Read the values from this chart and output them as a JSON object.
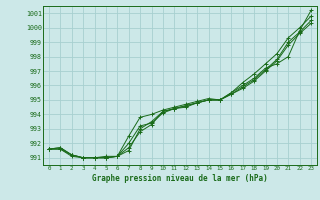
{
  "title": "Graphe pression niveau de la mer (hPa)",
  "bg_color": "#cce8e8",
  "grid_color": "#a8d0d0",
  "line_color": "#1a6b1a",
  "xlim": [
    -0.5,
    23.5
  ],
  "ylim": [
    990.5,
    1001.5
  ],
  "yticks": [
    991,
    992,
    993,
    994,
    995,
    996,
    997,
    998,
    999,
    1000,
    1001
  ],
  "xticks": [
    0,
    1,
    2,
    3,
    4,
    5,
    6,
    7,
    8,
    9,
    10,
    11,
    12,
    13,
    14,
    15,
    16,
    17,
    18,
    19,
    20,
    21,
    22,
    23
  ],
  "series": [
    [
      991.6,
      991.7,
      991.2,
      991.0,
      991.0,
      991.0,
      991.1,
      991.7,
      992.8,
      993.3,
      994.2,
      994.4,
      994.5,
      994.8,
      995.0,
      995.0,
      995.4,
      995.9,
      996.4,
      997.1,
      997.8,
      999.0,
      999.7,
      1000.5
    ],
    [
      991.6,
      991.7,
      991.2,
      991.0,
      991.0,
      991.0,
      991.1,
      992.5,
      993.8,
      994.0,
      994.3,
      994.5,
      994.7,
      994.9,
      995.1,
      995.0,
      995.5,
      996.2,
      996.8,
      997.5,
      998.2,
      999.3,
      1000.0,
      1000.8
    ],
    [
      991.6,
      991.6,
      991.1,
      991.0,
      991.0,
      991.0,
      991.1,
      991.5,
      993.0,
      993.5,
      994.2,
      994.4,
      994.6,
      994.8,
      995.0,
      995.0,
      995.5,
      996.0,
      996.5,
      997.2,
      997.5,
      998.0,
      999.8,
      1001.2
    ],
    [
      991.6,
      991.6,
      991.2,
      991.0,
      991.0,
      991.1,
      991.1,
      992.0,
      993.2,
      993.4,
      994.1,
      994.4,
      994.6,
      994.8,
      995.0,
      995.0,
      995.4,
      995.8,
      996.3,
      997.0,
      997.7,
      998.8,
      999.6,
      1000.3
    ]
  ]
}
